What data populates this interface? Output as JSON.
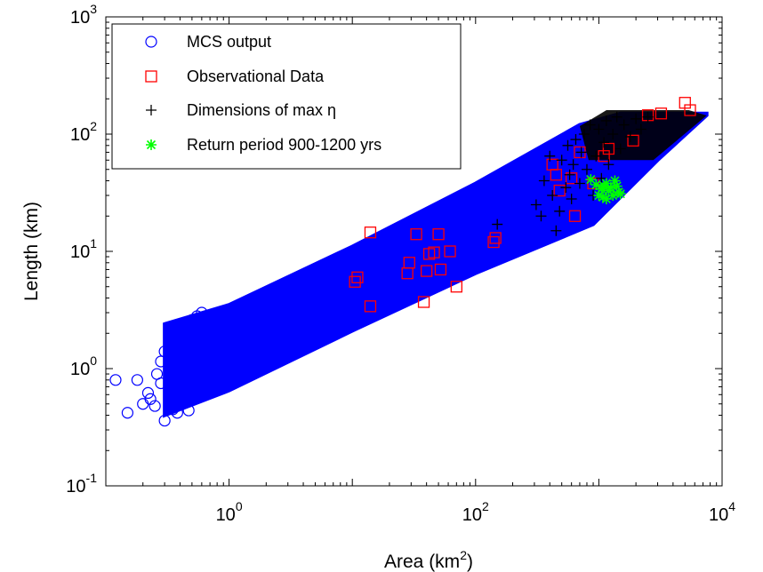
{
  "chart_data": {
    "type": "scatter",
    "xscale": "log",
    "yscale": "log",
    "xlim": [
      0.1,
      10000
    ],
    "ylim": [
      0.1,
      1000
    ],
    "xticks": [
      {
        "value": 1,
        "base": "10",
        "exp": "0"
      },
      {
        "value": 100,
        "base": "10",
        "exp": "2"
      },
      {
        "value": 10000,
        "base": "10",
        "exp": "4"
      }
    ],
    "yticks": [
      {
        "value": 0.1,
        "base": "10",
        "exp": "-1"
      },
      {
        "value": 1,
        "base": "10",
        "exp": "0"
      },
      {
        "value": 10,
        "base": "10",
        "exp": "1"
      },
      {
        "value": 100,
        "base": "10",
        "exp": "2"
      },
      {
        "value": 1000,
        "base": "10",
        "exp": "3"
      }
    ],
    "xlabel": {
      "text": "Area (km",
      "sup": "2",
      "tail": ")"
    },
    "ylabel": "Length (km)",
    "grid": false,
    "legend_position": "top-left",
    "series": [
      {
        "name": "MCS output",
        "marker": "circle",
        "color": "#0000ff",
        "band": {
          "upper": [
            [
              0.3,
              2.4
            ],
            [
              1,
              3.5
            ],
            [
              10,
              11
            ],
            [
              100,
              38
            ],
            [
              700,
              120
            ],
            [
              1500,
              150
            ],
            [
              7500,
              150
            ]
          ],
          "lower": [
            [
              0.3,
              0.4
            ],
            [
              1,
              0.65
            ],
            [
              10,
              2.1
            ],
            [
              100,
              6.5
            ],
            [
              900,
              17
            ],
            [
              3000,
              60
            ],
            [
              7500,
              145
            ]
          ]
        },
        "outliers": [
          [
            0.12,
            0.8
          ],
          [
            0.15,
            0.42
          ],
          [
            0.18,
            0.8
          ],
          [
            0.2,
            0.5
          ],
          [
            0.22,
            0.62
          ],
          [
            0.23,
            0.55
          ],
          [
            0.25,
            0.48
          ],
          [
            0.26,
            0.9
          ],
          [
            0.28,
            1.15
          ],
          [
            0.28,
            0.75
          ],
          [
            0.3,
            0.36
          ],
          [
            0.3,
            1.4
          ],
          [
            0.33,
            1.65
          ],
          [
            0.35,
            0.45
          ],
          [
            0.35,
            1.05
          ],
          [
            0.4,
            1.85
          ],
          [
            0.45,
            2.3
          ],
          [
            0.5,
            2.6
          ],
          [
            0.55,
            2.8
          ],
          [
            0.6,
            3.0
          ],
          [
            0.38,
            0.42
          ],
          [
            0.42,
            1.3
          ],
          [
            0.47,
            0.44
          ]
        ]
      },
      {
        "name": "Observational Data",
        "marker": "square",
        "color": "#ff0000",
        "points": [
          [
            10.5,
            5.5
          ],
          [
            11,
            6
          ],
          [
            14,
            3.4
          ],
          [
            14,
            14.5
          ],
          [
            28,
            6.5
          ],
          [
            29,
            8
          ],
          [
            33,
            14
          ],
          [
            38,
            3.7
          ],
          [
            40,
            6.8
          ],
          [
            42,
            9.5
          ],
          [
            46,
            9.8
          ],
          [
            50,
            14
          ],
          [
            52,
            7
          ],
          [
            62,
            10
          ],
          [
            70,
            5
          ],
          [
            140,
            12
          ],
          [
            145,
            13
          ],
          [
            420,
            55
          ],
          [
            450,
            45
          ],
          [
            480,
            33
          ],
          [
            600,
            42
          ],
          [
            640,
            20
          ],
          [
            700,
            70
          ],
          [
            900,
            38
          ],
          [
            1100,
            65
          ],
          [
            1200,
            75
          ],
          [
            1900,
            88
          ],
          [
            2500,
            145
          ],
          [
            3200,
            150
          ],
          [
            5000,
            185
          ],
          [
            5500,
            160
          ]
        ]
      },
      {
        "name": "Dimensions of max η",
        "marker": "plus",
        "color": "#000000",
        "region": [
          [
            700,
            60,
            7500,
            160
          ]
        ],
        "points": [
          [
            150,
            17
          ],
          [
            310,
            25
          ],
          [
            340,
            20
          ],
          [
            360,
            40
          ],
          [
            400,
            65
          ],
          [
            420,
            30
          ],
          [
            450,
            15
          ],
          [
            480,
            22
          ],
          [
            500,
            60
          ],
          [
            540,
            35
          ],
          [
            560,
            80
          ],
          [
            580,
            45
          ],
          [
            600,
            28
          ],
          [
            620,
            55
          ],
          [
            650,
            90
          ],
          [
            700,
            38
          ],
          [
            720,
            70
          ],
          [
            760,
            100
          ],
          [
            800,
            50
          ],
          [
            850,
            120
          ],
          [
            900,
            30
          ],
          [
            950,
            65
          ],
          [
            1000,
            110
          ],
          [
            1050,
            42
          ],
          [
            1100,
            85
          ],
          [
            1150,
            130
          ],
          [
            1200,
            55
          ],
          [
            1300,
            100
          ],
          [
            1400,
            140
          ],
          [
            1500,
            75
          ],
          [
            1600,
            120
          ],
          [
            1800,
            95
          ],
          [
            2000,
            135
          ],
          [
            2200,
            110
          ],
          [
            2500,
            140
          ]
        ]
      },
      {
        "name": "Return period 900-1200 yrs",
        "marker": "star",
        "color": "#00ff00",
        "points": [
          [
            860,
            41
          ],
          [
            950,
            37
          ],
          [
            1000,
            30
          ],
          [
            1050,
            34
          ],
          [
            1080,
            29
          ],
          [
            1100,
            36
          ],
          [
            1150,
            38
          ],
          [
            1200,
            33
          ],
          [
            1250,
            35
          ],
          [
            1300,
            30
          ],
          [
            1350,
            40
          ],
          [
            1400,
            36
          ],
          [
            1450,
            32
          ],
          [
            1500,
            31
          ],
          [
            1150,
            28
          ]
        ]
      }
    ]
  }
}
